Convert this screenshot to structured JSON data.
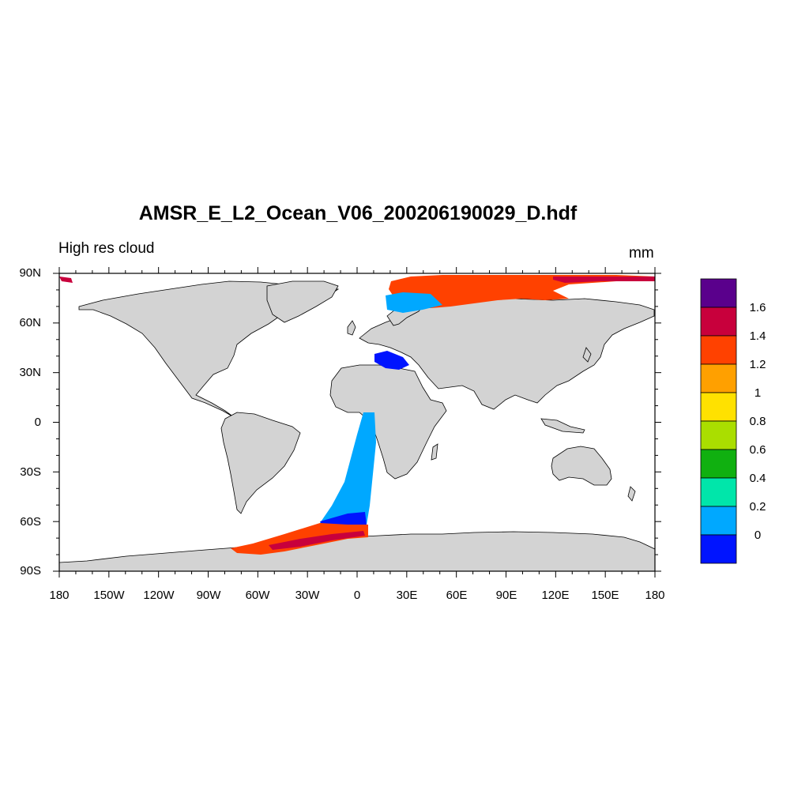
{
  "title": "AMSR_E_L2_Ocean_V06_200206190029_D.hdf",
  "left_string": "High res cloud",
  "units": "mm",
  "lat_labels": [
    "90N",
    "60N",
    "30N",
    "0",
    "30S",
    "60S",
    "90S"
  ],
  "lon_labels": [
    "180",
    "150W",
    "120W",
    "90W",
    "60W",
    "30W",
    "0",
    "30E",
    "60E",
    "90E",
    "120E",
    "150E",
    "180"
  ],
  "colorbar": {
    "levels": [
      "1.6",
      "1.4",
      "1.2",
      "1",
      "0.8",
      "0.6",
      "0.4",
      "0.2",
      "0"
    ],
    "colors_top_to_bottom": [
      "#5a008c",
      "#c8003c",
      "#ff4100",
      "#ffa000",
      "#ffe100",
      "#aade00",
      "#10b010",
      "#00e6aa",
      "#00a8ff",
      "#0014ff"
    ]
  },
  "colors": {
    "land": "#d3d3d3",
    "coastline": "#000000",
    "ocean": "#ffffff"
  }
}
